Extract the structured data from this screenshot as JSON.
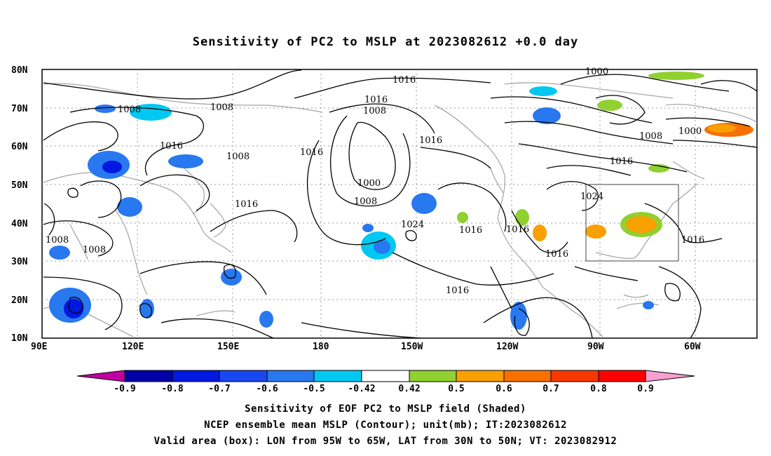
{
  "title": "Sensitivity of PC2 to MSLP at 2023082612 +0.0 day",
  "lat_labels": [
    "80N",
    "70N",
    "60N",
    "50N",
    "40N",
    "30N",
    "20N",
    "10N"
  ],
  "lon_labels": [
    "90E",
    "120E",
    "150E",
    "180",
    "150W",
    "120W",
    "90W",
    "60W"
  ],
  "contour_labels": [
    "1016",
    "1016",
    "1008",
    "1008",
    "1008",
    "1016",
    "1008",
    "1016",
    "1000",
    "1008",
    "1024",
    "1016",
    "1016",
    "1016",
    "1024",
    "1016",
    "1016",
    "1000",
    "1008",
    "1000",
    "1016",
    "1016",
    "1008",
    "1008"
  ],
  "colorbar": {
    "labels": [
      "-0.9",
      "-0.8",
      "-0.7",
      "-0.6",
      "-0.5",
      "-0.42",
      "0.42",
      "0.5",
      "0.6",
      "0.7",
      "0.8",
      "0.9"
    ],
    "colors": [
      "#c000a0",
      "#0000a8",
      "#0018e0",
      "#1848f0",
      "#2878f0",
      "#00c8f0",
      "#ffffff",
      "#90d030",
      "#f8a000",
      "#f87000",
      "#f83800",
      "#ff0000",
      "#f8a0d0"
    ]
  },
  "box": {
    "lon_from": "95W",
    "lon_to": "65W",
    "lat_from": "30N",
    "lat_to": "50N"
  },
  "caption": {
    "line1": "Sensitivity of EOF PC2 to MSLP field (Shaded)",
    "line2": "NCEP ensemble mean MSLP (Contour); unit(mb); IT:2023082612",
    "line3": "Valid area (box): LON from 95W to 65W, LAT from 30N to 50N; VT: 2023082912"
  }
}
